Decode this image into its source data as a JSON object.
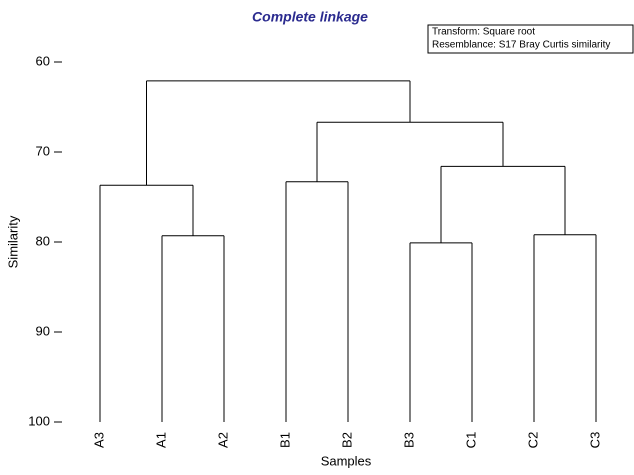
{
  "chart_data": {
    "type": "dendrogram",
    "title": "Complete linkage",
    "annotations": [
      "Transform: Square root",
      "Resemblance: S17 Bray Curtis similarity"
    ],
    "xlabel": "Samples",
    "ylabel": "Similarity",
    "ylim": [
      60,
      100
    ],
    "yticks": [
      60,
      70,
      80,
      90,
      100
    ],
    "y_inverted": true,
    "color": "#000000",
    "tree": {
      "height": 62.1,
      "children": [
        {
          "height": 73.7,
          "children": [
            {
              "label": "A3"
            },
            {
              "height": 79.3,
              "children": [
                {
                  "label": "A1"
                },
                {
                  "label": "A2"
                }
              ]
            }
          ]
        },
        {
          "height": 66.7,
          "children": [
            {
              "height": 73.3,
              "children": [
                {
                  "label": "B1"
                },
                {
                  "label": "B2"
                }
              ]
            },
            {
              "height": 71.6,
              "children": [
                {
                  "height": 80.1,
                  "children": [
                    {
                      "label": "B3"
                    },
                    {
                      "label": "C1"
                    }
                  ]
                },
                {
                  "height": 79.2,
                  "children": [
                    {
                      "label": "C2"
                    },
                    {
                      "label": "C3"
                    }
                  ]
                }
              ]
            }
          ]
        }
      ]
    }
  }
}
